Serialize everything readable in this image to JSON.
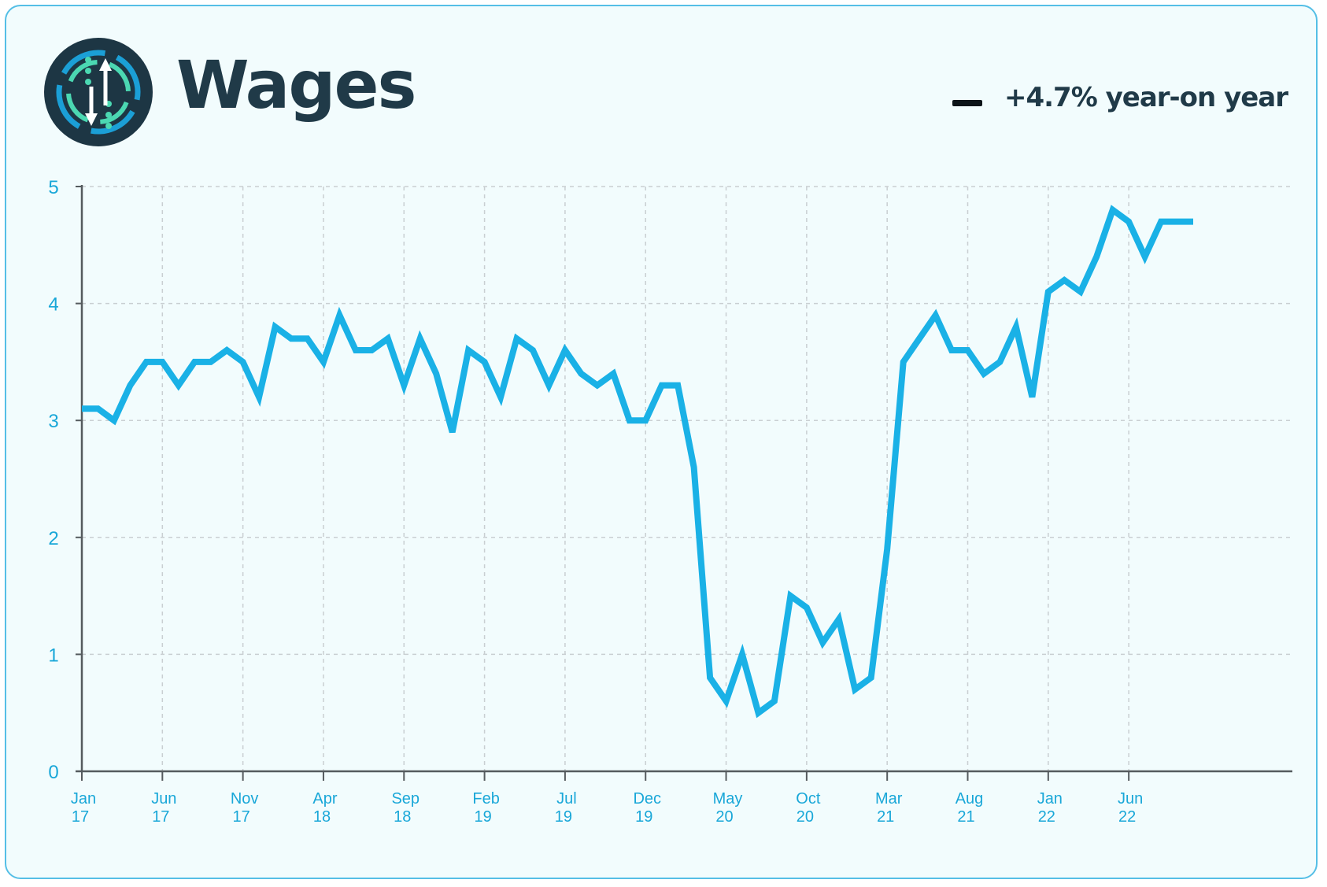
{
  "header": {
    "title": "Wages",
    "legend_label": "+4.7% year-on year"
  },
  "logo": {
    "icon": "info-up-down-arrows-icon"
  },
  "colors": {
    "line": "#1ab1e6",
    "tick_text": "#19a7d8",
    "title": "#203a48",
    "legend_swatch": "#0c1418",
    "card_border": "#55bfe6",
    "card_background": "#f2fcfd"
  },
  "chart_data": {
    "type": "line",
    "title": "Wages",
    "xlabel": "",
    "ylabel": "",
    "ylim": [
      0,
      5
    ],
    "yticks": [
      0,
      1,
      2,
      3,
      4,
      5
    ],
    "grid": true,
    "legend_position": "top-right",
    "x_tick_labels": [
      {
        "index": 0,
        "month": "Jan",
        "year": "17"
      },
      {
        "index": 5,
        "month": "Jun",
        "year": "17"
      },
      {
        "index": 10,
        "month": "Nov",
        "year": "17"
      },
      {
        "index": 15,
        "month": "Apr",
        "year": "18"
      },
      {
        "index": 20,
        "month": "Sep",
        "year": "18"
      },
      {
        "index": 25,
        "month": "Feb",
        "year": "19"
      },
      {
        "index": 30,
        "month": "Jul",
        "year": "19"
      },
      {
        "index": 35,
        "month": "Dec",
        "year": "19"
      },
      {
        "index": 40,
        "month": "May",
        "year": "20"
      },
      {
        "index": 45,
        "month": "Oct",
        "year": "20"
      },
      {
        "index": 50,
        "month": "Mar",
        "year": "21"
      },
      {
        "index": 55,
        "month": "Aug",
        "year": "21"
      },
      {
        "index": 60,
        "month": "Jan",
        "year": "22"
      },
      {
        "index": 65,
        "month": "Jun",
        "year": "22"
      }
    ],
    "series": [
      {
        "name": "+4.7% year-on year",
        "values": [
          3.1,
          3.1,
          3.0,
          3.3,
          3.5,
          3.5,
          3.3,
          3.5,
          3.5,
          3.6,
          3.5,
          3.2,
          3.8,
          3.7,
          3.7,
          3.5,
          3.9,
          3.6,
          3.6,
          3.7,
          3.3,
          3.7,
          3.4,
          2.9,
          3.6,
          3.5,
          3.2,
          3.7,
          3.6,
          3.3,
          3.6,
          3.4,
          3.3,
          3.4,
          3.0,
          3.0,
          3.3,
          3.3,
          2.6,
          0.8,
          0.6,
          1.0,
          0.5,
          0.6,
          1.5,
          1.4,
          1.1,
          1.3,
          0.7,
          0.8,
          1.9,
          3.5,
          3.7,
          3.9,
          3.6,
          3.6,
          3.4,
          3.5,
          3.8,
          3.2,
          4.1,
          4.2,
          4.1,
          4.4,
          4.8,
          4.7,
          4.4,
          4.7,
          4.7,
          4.7
        ]
      }
    ]
  }
}
